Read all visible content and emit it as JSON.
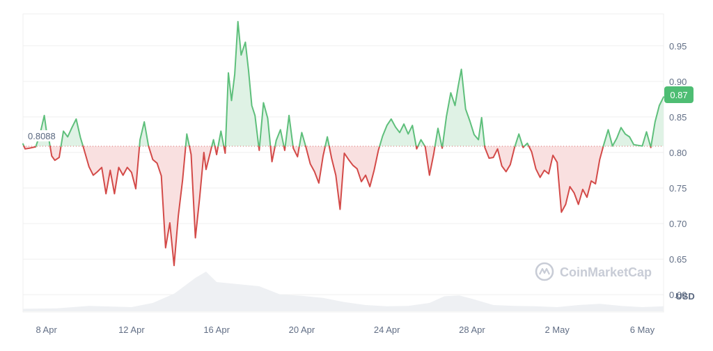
{
  "chart_data": {
    "type": "line",
    "baseline": {
      "value": 0.8088,
      "label": "0.8088"
    },
    "current_price": {
      "value": 0.87,
      "label": "0.87"
    },
    "currency_label": "USD",
    "watermark": "CoinMarketCap",
    "ylim": [
      0.5757,
      0.9948
    ],
    "y_ticks": [
      {
        "value": 0.95,
        "label": "0.95"
      },
      {
        "value": 0.9,
        "label": "0.90"
      },
      {
        "value": 0.85,
        "label": "0.85"
      },
      {
        "value": 0.8,
        "label": "0.80"
      },
      {
        "value": 0.75,
        "label": "0.75"
      },
      {
        "value": 0.7,
        "label": "0.70"
      },
      {
        "value": 0.65,
        "label": "0.65"
      },
      {
        "value": 0.6,
        "label": "0.60"
      }
    ],
    "x_ticks": [
      "8 Apr",
      "12 Apr",
      "16 Apr",
      "20 Apr",
      "24 Apr",
      "28 Apr",
      "2 May",
      "6 May"
    ],
    "x_range_days": [
      6.9,
      37.0
    ],
    "series": [
      {
        "kind": "price",
        "points": [
          [
            6.9,
            0.812
          ],
          [
            7.0,
            0.805
          ],
          [
            7.2,
            0.806
          ],
          [
            7.5,
            0.808
          ],
          [
            7.7,
            0.826
          ],
          [
            7.9,
            0.852
          ],
          [
            8.0,
            0.831
          ],
          [
            8.1,
            0.822
          ],
          [
            8.25,
            0.795
          ],
          [
            8.4,
            0.789
          ],
          [
            8.6,
            0.793
          ],
          [
            8.8,
            0.83
          ],
          [
            9.0,
            0.822
          ],
          [
            9.2,
            0.835
          ],
          [
            9.4,
            0.847
          ],
          [
            9.6,
            0.821
          ],
          [
            9.8,
            0.801
          ],
          [
            10.0,
            0.78
          ],
          [
            10.2,
            0.768
          ],
          [
            10.4,
            0.773
          ],
          [
            10.6,
            0.779
          ],
          [
            10.8,
            0.742
          ],
          [
            11.0,
            0.775
          ],
          [
            11.2,
            0.742
          ],
          [
            11.4,
            0.779
          ],
          [
            11.6,
            0.768
          ],
          [
            11.8,
            0.779
          ],
          [
            12.0,
            0.772
          ],
          [
            12.2,
            0.749
          ],
          [
            12.4,
            0.818
          ],
          [
            12.6,
            0.843
          ],
          [
            12.8,
            0.809
          ],
          [
            13.0,
            0.79
          ],
          [
            13.2,
            0.785
          ],
          [
            13.4,
            0.767
          ],
          [
            13.6,
            0.666
          ],
          [
            13.8,
            0.701
          ],
          [
            14.0,
            0.641
          ],
          [
            14.2,
            0.711
          ],
          [
            14.4,
            0.761
          ],
          [
            14.6,
            0.826
          ],
          [
            14.8,
            0.797
          ],
          [
            15.0,
            0.68
          ],
          [
            15.2,
            0.736
          ],
          [
            15.4,
            0.8
          ],
          [
            15.5,
            0.776
          ],
          [
            15.7,
            0.8
          ],
          [
            15.85,
            0.818
          ],
          [
            16.0,
            0.797
          ],
          [
            16.2,
            0.83
          ],
          [
            16.4,
            0.799
          ],
          [
            16.55,
            0.912
          ],
          [
            16.7,
            0.873
          ],
          [
            16.85,
            0.91
          ],
          [
            17.0,
            0.984
          ],
          [
            17.15,
            0.937
          ],
          [
            17.35,
            0.955
          ],
          [
            17.5,
            0.915
          ],
          [
            17.65,
            0.866
          ],
          [
            17.8,
            0.852
          ],
          [
            18.0,
            0.803
          ],
          [
            18.2,
            0.87
          ],
          [
            18.4,
            0.848
          ],
          [
            18.6,
            0.787
          ],
          [
            18.8,
            0.817
          ],
          [
            19.0,
            0.832
          ],
          [
            19.2,
            0.803
          ],
          [
            19.4,
            0.852
          ],
          [
            19.6,
            0.806
          ],
          [
            19.8,
            0.794
          ],
          [
            20.0,
            0.828
          ],
          [
            20.2,
            0.807
          ],
          [
            20.4,
            0.784
          ],
          [
            20.6,
            0.773
          ],
          [
            20.8,
            0.757
          ],
          [
            21.0,
            0.795
          ],
          [
            21.2,
            0.822
          ],
          [
            21.4,
            0.792
          ],
          [
            21.6,
            0.768
          ],
          [
            21.8,
            0.72
          ],
          [
            22.0,
            0.799
          ],
          [
            22.2,
            0.79
          ],
          [
            22.4,
            0.782
          ],
          [
            22.6,
            0.777
          ],
          [
            22.8,
            0.759
          ],
          [
            23.0,
            0.768
          ],
          [
            23.2,
            0.752
          ],
          [
            23.4,
            0.775
          ],
          [
            23.6,
            0.803
          ],
          [
            23.8,
            0.823
          ],
          [
            24.0,
            0.838
          ],
          [
            24.2,
            0.847
          ],
          [
            24.4,
            0.836
          ],
          [
            24.6,
            0.828
          ],
          [
            24.8,
            0.84
          ],
          [
            25.0,
            0.826
          ],
          [
            25.2,
            0.838
          ],
          [
            25.4,
            0.805
          ],
          [
            25.6,
            0.818
          ],
          [
            25.8,
            0.808
          ],
          [
            26.0,
            0.768
          ],
          [
            26.2,
            0.798
          ],
          [
            26.4,
            0.834
          ],
          [
            26.6,
            0.806
          ],
          [
            26.8,
            0.851
          ],
          [
            27.0,
            0.884
          ],
          [
            27.2,
            0.866
          ],
          [
            27.35,
            0.893
          ],
          [
            27.5,
            0.917
          ],
          [
            27.7,
            0.861
          ],
          [
            27.9,
            0.844
          ],
          [
            28.1,
            0.825
          ],
          [
            28.3,
            0.818
          ],
          [
            28.45,
            0.849
          ],
          [
            28.6,
            0.807
          ],
          [
            28.8,
            0.792
          ],
          [
            29.0,
            0.793
          ],
          [
            29.2,
            0.805
          ],
          [
            29.4,
            0.781
          ],
          [
            29.6,
            0.773
          ],
          [
            29.8,
            0.783
          ],
          [
            30.0,
            0.807
          ],
          [
            30.2,
            0.826
          ],
          [
            30.4,
            0.807
          ],
          [
            30.6,
            0.813
          ],
          [
            30.8,
            0.801
          ],
          [
            31.0,
            0.777
          ],
          [
            31.2,
            0.765
          ],
          [
            31.4,
            0.775
          ],
          [
            31.6,
            0.77
          ],
          [
            31.8,
            0.796
          ],
          [
            32.0,
            0.786
          ],
          [
            32.2,
            0.716
          ],
          [
            32.4,
            0.727
          ],
          [
            32.6,
            0.752
          ],
          [
            32.8,
            0.743
          ],
          [
            33.0,
            0.727
          ],
          [
            33.2,
            0.748
          ],
          [
            33.4,
            0.737
          ],
          [
            33.6,
            0.76
          ],
          [
            33.8,
            0.756
          ],
          [
            34.0,
            0.79
          ],
          [
            34.2,
            0.812
          ],
          [
            34.4,
            0.832
          ],
          [
            34.6,
            0.809
          ],
          [
            34.8,
            0.82
          ],
          [
            35.0,
            0.835
          ],
          [
            35.2,
            0.826
          ],
          [
            35.4,
            0.822
          ],
          [
            35.6,
            0.811
          ],
          [
            35.8,
            0.81
          ],
          [
            36.0,
            0.809
          ],
          [
            36.2,
            0.829
          ],
          [
            36.4,
            0.807
          ],
          [
            36.6,
            0.843
          ],
          [
            36.8,
            0.866
          ],
          [
            37.0,
            0.878
          ]
        ]
      },
      {
        "kind": "volume",
        "relative_level": [
          [
            6.9,
            0.06
          ],
          [
            8.5,
            0.07
          ],
          [
            10.0,
            0.13
          ],
          [
            12.0,
            0.1
          ],
          [
            13.0,
            0.2
          ],
          [
            14.0,
            0.42
          ],
          [
            15.0,
            0.8
          ],
          [
            15.5,
            0.95
          ],
          [
            16.0,
            0.7
          ],
          [
            17.0,
            0.65
          ],
          [
            18.0,
            0.6
          ],
          [
            19.0,
            0.4
          ],
          [
            20.0,
            0.37
          ],
          [
            21.0,
            0.32
          ],
          [
            22.0,
            0.22
          ],
          [
            23.0,
            0.15
          ],
          [
            24.0,
            0.12
          ],
          [
            25.0,
            0.13
          ],
          [
            26.0,
            0.2
          ],
          [
            26.7,
            0.36
          ],
          [
            27.4,
            0.38
          ],
          [
            28.0,
            0.3
          ],
          [
            29.0,
            0.15
          ],
          [
            30.0,
            0.13
          ],
          [
            31.0,
            0.12
          ],
          [
            32.0,
            0.1
          ],
          [
            33.0,
            0.15
          ],
          [
            34.0,
            0.18
          ],
          [
            35.0,
            0.13
          ],
          [
            36.0,
            0.1
          ],
          [
            37.0,
            0.12
          ]
        ]
      }
    ],
    "colors": {
      "up_line": "#5ebf7b",
      "down_line": "#d34a48",
      "up_fill": "#dff2e5",
      "down_fill": "#f9e0e0",
      "grid": "#efefef",
      "axis_text": "#616e85",
      "baseline_dots": "#d96a68",
      "price_badge": "#4ebd73",
      "volume_fill": "#eef0f3",
      "watermark": "#c8ccd6"
    }
  }
}
